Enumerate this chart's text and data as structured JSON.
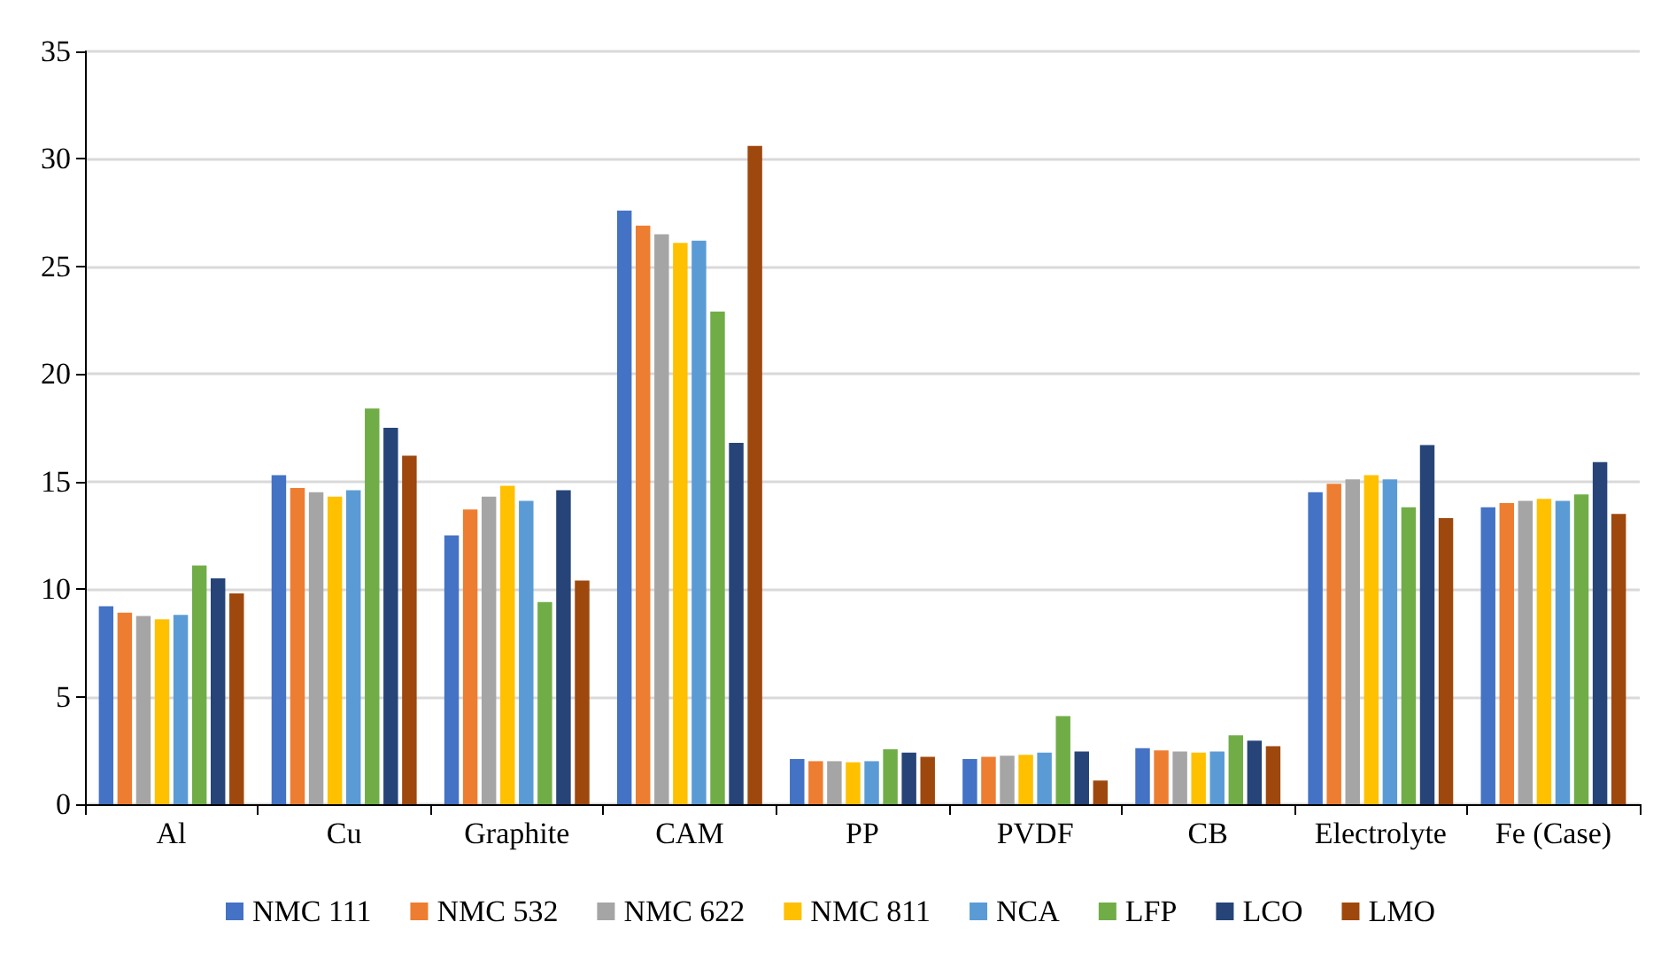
{
  "chart_data": {
    "type": "bar",
    "categories": [
      "Al",
      "Cu",
      "Graphite",
      "CAM",
      "PP",
      "PVDF",
      "CB",
      "Electrolyte",
      "Fe (Case)"
    ],
    "series": [
      {
        "name": "NMC 111",
        "color": "#4472c4",
        "values": [
          9.2,
          15.3,
          12.5,
          27.6,
          2.1,
          2.1,
          2.6,
          14.5,
          13.8
        ]
      },
      {
        "name": "NMC 532",
        "color": "#ed7d31",
        "values": [
          8.9,
          14.7,
          13.7,
          26.9,
          2.0,
          2.2,
          2.5,
          14.9,
          14.0
        ]
      },
      {
        "name": "NMC 622",
        "color": "#a5a5a5",
        "values": [
          8.75,
          14.5,
          14.3,
          26.5,
          2.0,
          2.25,
          2.45,
          15.1,
          14.1
        ]
      },
      {
        "name": "NMC 811",
        "color": "#ffc000",
        "values": [
          8.6,
          14.3,
          14.8,
          26.1,
          1.95,
          2.3,
          2.4,
          15.3,
          14.2
        ]
      },
      {
        "name": "NCA",
        "color": "#5b9bd5",
        "values": [
          8.8,
          14.6,
          14.1,
          26.2,
          2.0,
          2.4,
          2.45,
          15.1,
          14.1
        ]
      },
      {
        "name": "LFP",
        "color": "#70ad47",
        "values": [
          11.1,
          18.4,
          9.4,
          22.9,
          2.55,
          4.1,
          3.2,
          13.8,
          14.4
        ]
      },
      {
        "name": "LCO",
        "color": "#264478",
        "values": [
          10.5,
          17.5,
          14.6,
          16.8,
          2.4,
          2.45,
          2.95,
          16.7,
          15.9
        ]
      },
      {
        "name": "LMO",
        "color": "#9e480e",
        "values": [
          9.8,
          16.2,
          10.4,
          30.6,
          2.2,
          1.1,
          2.7,
          13.3,
          13.5
        ]
      }
    ],
    "ylim": [
      0,
      35
    ],
    "yticks": [
      0,
      5,
      10,
      15,
      20,
      25,
      30,
      35
    ],
    "grid": "y",
    "legend": "bottom"
  }
}
